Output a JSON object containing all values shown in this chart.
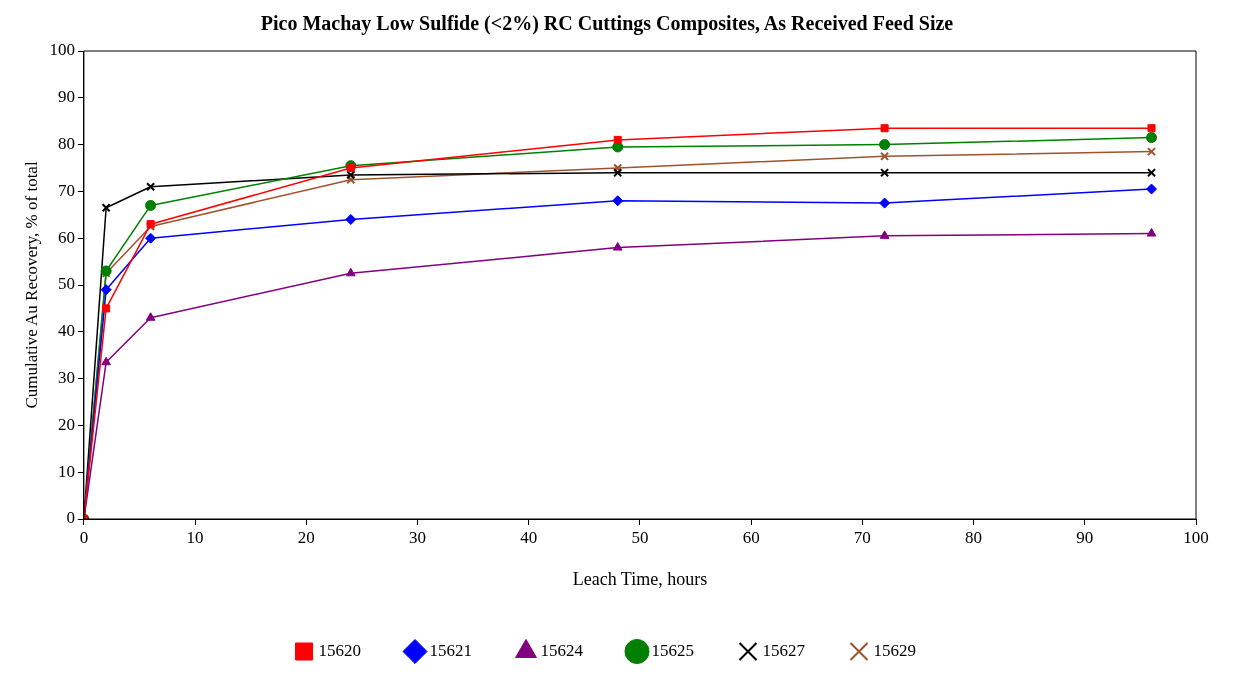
{
  "chart_data": {
    "type": "line",
    "title": "Pico Machay Low Sulfide (<2%) RC Cuttings Composites, As Received Feed Size",
    "xlabel": "Leach Time, hours",
    "ylabel": "Cumulative Au Recovery, % of total",
    "x": [
      0,
      2,
      6,
      24,
      48,
      72,
      96
    ],
    "series": [
      {
        "name": "15620",
        "color": "#ff0000",
        "marker": "square",
        "values": [
          0,
          45,
          63,
          75,
          81,
          83.5,
          83.5
        ]
      },
      {
        "name": "15621",
        "color": "#0000ff",
        "marker": "diamond",
        "values": [
          0,
          49,
          60,
          64,
          68,
          67.5,
          70.5
        ]
      },
      {
        "name": "15624",
        "color": "#800080",
        "marker": "triangle",
        "values": [
          0,
          33.5,
          43,
          52.5,
          58,
          60.5,
          61
        ]
      },
      {
        "name": "15625",
        "color": "#008000",
        "marker": "circle",
        "values": [
          0,
          53,
          67,
          75.5,
          79.5,
          80,
          81.5
        ]
      },
      {
        "name": "15627",
        "color": "#000000",
        "marker": "cross",
        "values": [
          0,
          66.5,
          71,
          73.5,
          74,
          74,
          74
        ]
      },
      {
        "name": "15629",
        "color": "#a0522d",
        "marker": "cross",
        "values": [
          0,
          52.5,
          62.5,
          72.5,
          75,
          77.5,
          78.5
        ]
      }
    ],
    "xlim": [
      0,
      100
    ],
    "xticks": [
      0,
      10,
      20,
      30,
      40,
      50,
      60,
      70,
      80,
      90,
      100
    ],
    "ylim": [
      0,
      100
    ],
    "yticks": [
      0,
      10,
      20,
      30,
      40,
      50,
      60,
      70,
      80,
      90,
      100
    ],
    "grid": false,
    "legend": "bottom",
    "line_style": "solid"
  }
}
